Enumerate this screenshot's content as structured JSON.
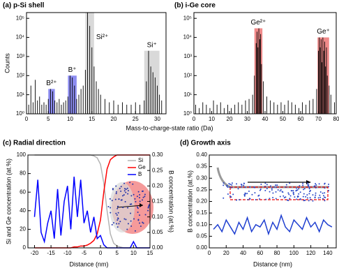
{
  "figure": {
    "x_label": "Mass-to-charge-state ratio (Da)"
  },
  "chart_data": [
    {
      "type": "bar",
      "title": "(a) p-Si shell",
      "y_label": "Counts",
      "log_y": true,
      "color": "#000000",
      "xlim": [
        0,
        32
      ],
      "xticks": [
        0,
        5,
        10,
        15,
        20,
        25,
        30
      ],
      "ylim": [
        1,
        200000
      ],
      "yticks": [
        {
          "value": 1,
          "label": "10⁰"
        },
        {
          "value": 10,
          "label": "10¹"
        },
        {
          "value": 100,
          "label": "10²"
        },
        {
          "value": 1000,
          "label": "10³"
        },
        {
          "value": 10000,
          "label": "10⁴"
        },
        {
          "value": 100000,
          "label": "10⁵"
        }
      ],
      "x": [
        0.5,
        1,
        1.5,
        2,
        2.5,
        3,
        3.5,
        4,
        4.5,
        5,
        5.5,
        6,
        6.5,
        7,
        7.5,
        8,
        8.5,
        9,
        9.5,
        10,
        10.5,
        11,
        11.5,
        12,
        12.5,
        13,
        13.5,
        14,
        14.5,
        15,
        15.5,
        16,
        16.5,
        17,
        18,
        19,
        20,
        21,
        22,
        23,
        24,
        25,
        26,
        27,
        27.5,
        28,
        28.5,
        29,
        29.5,
        30,
        30.5,
        31,
        32
      ],
      "values": [
        3,
        30,
        4,
        60,
        5,
        8,
        3,
        4,
        3,
        6,
        20,
        15,
        5,
        4,
        6,
        3,
        4,
        5,
        8,
        100,
        80,
        30,
        6,
        10,
        20,
        30,
        200,
        200000,
        40000,
        3000,
        300,
        50,
        20,
        10,
        6,
        4,
        5,
        3,
        4,
        3,
        3,
        4,
        3,
        5,
        50,
        2000,
        300,
        150,
        80,
        30,
        10,
        5,
        3
      ],
      "highlights": [
        {
          "label": "B²⁺",
          "range": [
            5,
            6.5
          ],
          "top": 20,
          "color": "#8c8cf0"
        },
        {
          "label": "B⁺",
          "range": [
            9.5,
            11.5
          ],
          "top": 100,
          "color": "#8c8cf0"
        },
        {
          "label": "Si²⁺",
          "range": [
            13.5,
            15.5
          ],
          "top": 200000,
          "color": "#d9d9d9"
        },
        {
          "label": "Si⁺",
          "range": [
            27,
            30.5
          ],
          "top": 2000,
          "color": "#d9d9d9"
        }
      ]
    },
    {
      "type": "bar",
      "title": "(b) i-Ge core",
      "log_y": true,
      "color": "#000000",
      "xlim": [
        0,
        80
      ],
      "xticks": [
        0,
        10,
        20,
        30,
        40,
        50,
        60,
        70,
        80
      ],
      "ylim": [
        1,
        200000
      ],
      "yticks": [
        {
          "value": 1,
          "label": "10⁰"
        },
        {
          "value": 10,
          "label": "10¹"
        },
        {
          "value": 100,
          "label": "10²"
        },
        {
          "value": 1000,
          "label": "10³"
        },
        {
          "value": 10000,
          "label": "10⁴"
        },
        {
          "value": 100000,
          "label": "10⁵"
        }
      ],
      "x": [
        1,
        3,
        5,
        7,
        9,
        11,
        13,
        15,
        17,
        19,
        21,
        23,
        25,
        27,
        29,
        31,
        33,
        34,
        35,
        35.5,
        36,
        36.5,
        37,
        37.5,
        38,
        39,
        41,
        43,
        45,
        47,
        49,
        51,
        53,
        55,
        57,
        59,
        61,
        63,
        65,
        67,
        69,
        70,
        70.5,
        71,
        71.5,
        72,
        72.5,
        73,
        73.5,
        74,
        74.5,
        75,
        76,
        77,
        79
      ],
      "values": [
        3,
        2,
        4,
        3,
        2,
        5,
        3,
        4,
        2,
        3,
        2,
        3,
        4,
        3,
        5,
        6,
        10,
        100,
        5000,
        20000,
        3000,
        30000,
        8000,
        15000,
        400,
        50,
        8,
        5,
        4,
        3,
        4,
        3,
        5,
        4,
        3,
        2,
        4,
        3,
        5,
        6,
        20,
        2000,
        10000,
        3000,
        8000,
        500,
        10000,
        2000,
        6000,
        300,
        3000,
        100,
        30,
        10,
        4
      ],
      "highlights": [
        {
          "label": "Ge²⁺",
          "range": [
            34,
            38.5
          ],
          "top": 30000,
          "color": "#f08a8a"
        },
        {
          "label": "Ge⁺",
          "range": [
            69.5,
            76
          ],
          "top": 10000,
          "color": "#f08a8a"
        }
      ]
    },
    {
      "type": "line",
      "title": "(c) Radial direction",
      "x_label": "Distance (nm)",
      "y_label": "Si and Ge concentration (at.%)",
      "y2_label": "B concentration (at.%)",
      "xlim": [
        -22,
        15
      ],
      "xticks": [
        -20,
        -15,
        -10,
        -5,
        0,
        5,
        10,
        15
      ],
      "ylim": [
        0,
        100
      ],
      "yticks": [
        0,
        20,
        40,
        60,
        80,
        100
      ],
      "y2lim": [
        0,
        0.3
      ],
      "y2ticks": [
        {
          "value": 0,
          "label": "0.00"
        },
        {
          "value": 0.05,
          "label": "0.05"
        },
        {
          "value": 0.1,
          "label": "0.10"
        },
        {
          "value": 0.15,
          "label": "0.15"
        },
        {
          "value": 0.2,
          "label": "0.20"
        },
        {
          "value": 0.25,
          "label": "0.25"
        },
        {
          "value": 0.3,
          "label": "0.30"
        }
      ],
      "legend": "upper right",
      "x": [
        -20,
        -19,
        -18,
        -17,
        -16,
        -15,
        -14,
        -13,
        -12,
        -11,
        -10,
        -9,
        -8,
        -7,
        -6,
        -5,
        -4,
        -3,
        -2,
        -1,
        0,
        1,
        2,
        3,
        4,
        5,
        6,
        7,
        8,
        9,
        10,
        11,
        12,
        13,
        14,
        15
      ],
      "series": [
        {
          "name": "Si",
          "color": "#b4b4b4",
          "values": [
            100,
            100,
            100,
            100,
            100,
            100,
            100,
            100,
            100,
            100,
            100,
            100,
            100,
            100,
            100,
            100,
            100,
            100,
            99,
            97,
            90,
            70,
            40,
            15,
            5,
            2,
            1,
            0,
            0,
            0,
            0,
            0,
            0,
            0,
            0,
            0
          ]
        },
        {
          "name": "Ge",
          "color": "#ff0000",
          "values": [
            0,
            0,
            0,
            0,
            0,
            0,
            0,
            0,
            0,
            0,
            0,
            0,
            1,
            1,
            2,
            2,
            3,
            5,
            8,
            15,
            30,
            60,
            85,
            95,
            98,
            100,
            100,
            100,
            100,
            100,
            100,
            100,
            100,
            100,
            100,
            100
          ]
        },
        {
          "name": "B",
          "color": "#0000ff",
          "axis": "y2",
          "values": [
            0.1,
            0.22,
            0.05,
            0.02,
            0.08,
            0.12,
            0.03,
            0.19,
            0.04,
            0.15,
            0.2,
            0.06,
            0.23,
            0.1,
            0.22,
            0.08,
            0.12,
            0.05,
            0.1,
            0.03,
            0.04,
            0.01,
            0,
            0,
            0,
            0,
            0,
            0,
            0,
            0,
            0.02,
            0,
            0,
            0,
            0,
            0
          ]
        }
      ]
    },
    {
      "type": "line",
      "title": "(d) Growth axis",
      "x_label": "Distance (nm)",
      "y_label": "B concentration (at.%)",
      "xlim": [
        0,
        150
      ],
      "xticks": [
        0,
        20,
        40,
        60,
        80,
        100,
        120,
        140
      ],
      "ylim": [
        0,
        0.4
      ],
      "yticks": [
        {
          "value": 0,
          "label": "0.00"
        },
        {
          "value": 0.05,
          "label": "0.05"
        },
        {
          "value": 0.1,
          "label": "0.10"
        },
        {
          "value": 0.15,
          "label": "0.15"
        },
        {
          "value": 0.2,
          "label": "0.20"
        },
        {
          "value": 0.25,
          "label": "0.25"
        },
        {
          "value": 0.3,
          "label": "0.30"
        },
        {
          "value": 0.35,
          "label": "0.35"
        },
        {
          "value": 0.4,
          "label": "0.40"
        }
      ],
      "x": [
        5,
        10,
        15,
        20,
        25,
        30,
        35,
        40,
        45,
        50,
        55,
        60,
        65,
        70,
        75,
        80,
        85,
        90,
        95,
        100,
        105,
        110,
        115,
        120,
        125,
        130,
        135,
        140,
        145
      ],
      "series": [
        {
          "name": "B",
          "color": "#1f3fd0",
          "values": [
            0.08,
            0.1,
            0.07,
            0.12,
            0.09,
            0.06,
            0.11,
            0.08,
            0.13,
            0.07,
            0.1,
            0.09,
            0.12,
            0.06,
            0.11,
            0.08,
            0.14,
            0.09,
            0.07,
            0.12,
            0.1,
            0.08,
            0.13,
            0.09,
            0.11,
            0.07,
            0.12,
            0.1,
            0.09
          ]
        }
      ]
    }
  ]
}
